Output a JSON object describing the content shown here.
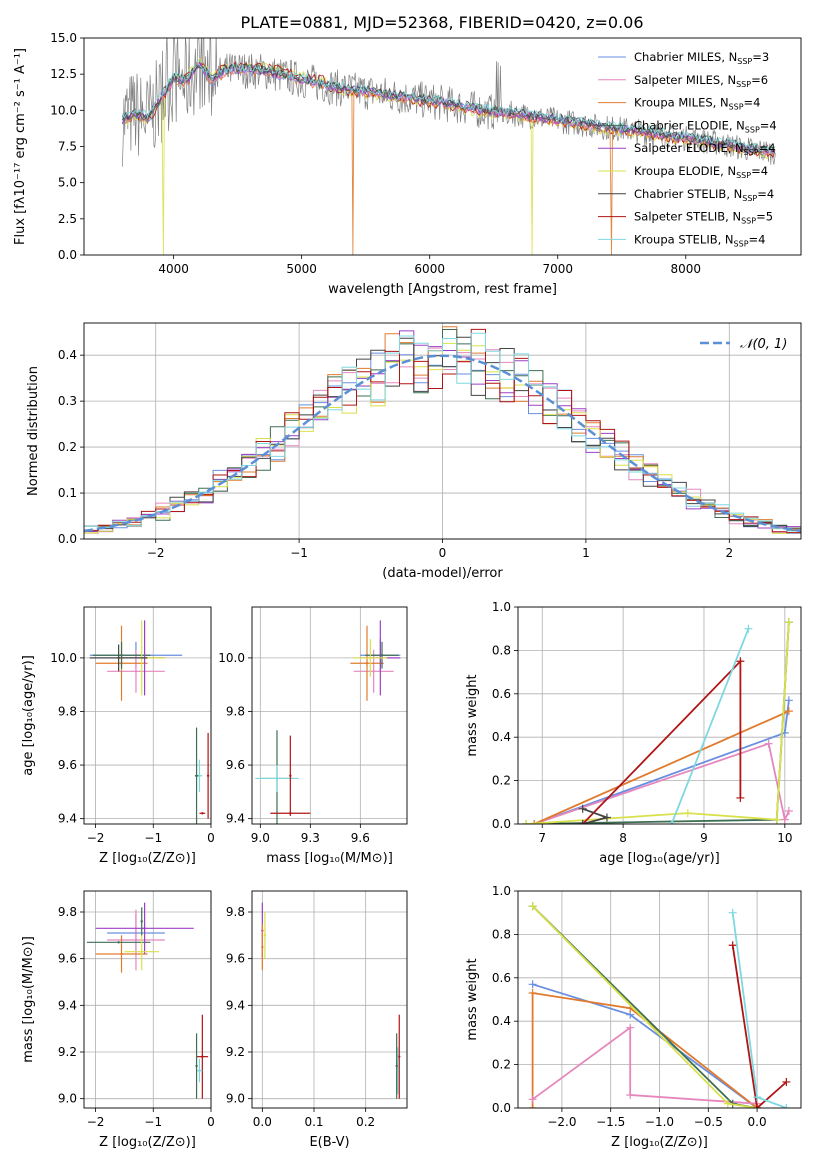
{
  "figure_title": "PLATE=0881, MJD=52368, FIBERID=0420, z=0.06",
  "colors": {
    "chabrier_miles": "#6a8fe0",
    "salpeter_miles": "#e587bd",
    "kroupa_miles": "#e07b2e",
    "chabrier_elodie": "#3f6f52",
    "salpeter_elodie": "#9b40c4",
    "kroupa_elodie": "#d8e04a",
    "chabrier_stelib": "#444444",
    "salpeter_stelib": "#b01414",
    "kroupa_stelib": "#7fd8e0",
    "data": "#808080",
    "gaussian": "#5b8fd6",
    "grid": "#b0b0b0"
  },
  "chart_data": [
    {
      "id": "spectrum",
      "type": "line",
      "title": "PLATE=0881, MJD=52368, FIBERID=0420, z=0.06",
      "xlabel": "wavelength [Angstrom, rest frame]",
      "ylabel": "Flux [fλ10⁻¹⁷ erg cm⁻² s⁻¹ A⁻¹]",
      "xlim": [
        3300,
        8900
      ],
      "ylim": [
        0,
        15
      ],
      "xticks": [
        4000,
        5000,
        6000,
        7000,
        8000
      ],
      "yticks": [
        0.0,
        2.5,
        5.0,
        7.5,
        10.0,
        12.5,
        15.0
      ],
      "xtick_labels": [
        "4000",
        "5000",
        "6000",
        "7000",
        "8000"
      ],
      "ytick_labels": [
        "0.0",
        "2.5",
        "5.0",
        "7.5",
        "10.0",
        "12.5",
        "15.0"
      ],
      "grid": false,
      "legend_position": "upper-right",
      "legend": [
        {
          "label": "Chabrier MILES, N",
          "sub": "SSP",
          "value": "=3",
          "color": "chabrier_miles"
        },
        {
          "label": "Salpeter MILES, N",
          "sub": "SSP",
          "value": "=6",
          "color": "salpeter_miles"
        },
        {
          "label": "Kroupa MILES, N",
          "sub": "SSP",
          "value": "=4",
          "color": "kroupa_miles"
        },
        {
          "label": "Chabrier ELODIE, N",
          "sub": "SSP",
          "value": "=4",
          "color": "chabrier_elodie"
        },
        {
          "label": "Salpeter ELODIE, N",
          "sub": "SSP",
          "value": "=4",
          "color": "salpeter_elodie"
        },
        {
          "label": "Kroupa ELODIE, N",
          "sub": "SSP",
          "value": "=4",
          "color": "kroupa_elodie"
        },
        {
          "label": "Chabrier STELIB, N",
          "sub": "SSP",
          "value": "=4",
          "color": "chabrier_stelib"
        },
        {
          "label": "Salpeter STELIB, N",
          "sub": "SSP",
          "value": "=5",
          "color": "salpeter_stelib"
        },
        {
          "label": "Kroupa STELIB, N",
          "sub": "SSP",
          "value": "=4",
          "color": "kroupa_stelib"
        }
      ],
      "continuum": {
        "x": [
          3600,
          3700,
          3800,
          3900,
          4000,
          4100,
          4200,
          4300,
          4400,
          4500,
          4700,
          4900,
          5100,
          5300,
          5500,
          5800,
          6100,
          6400,
          6700,
          7000,
          7300,
          7600,
          7900,
          8200,
          8500,
          8800
        ],
        "y": [
          9.3,
          9.8,
          9.4,
          10.8,
          12.2,
          12.0,
          13.2,
          12.0,
          12.7,
          12.8,
          12.7,
          12.3,
          11.9,
          11.5,
          11.3,
          10.9,
          10.5,
          10.0,
          9.7,
          9.3,
          8.9,
          8.6,
          8.2,
          7.8,
          7.3,
          7.0
        ]
      },
      "absorption_dips": [
        {
          "x": 3920,
          "y": 0.0,
          "series": "kroupa_elodie"
        },
        {
          "x": 5400,
          "y": 0.0,
          "series": "kroupa_miles"
        },
        {
          "x": 6800,
          "y": 0.0,
          "series": "kroupa_elodie"
        },
        {
          "x": 7420,
          "y": 0.0,
          "series": "kroupa_miles"
        }
      ]
    },
    {
      "id": "residuals",
      "type": "line",
      "xlabel": "(data-model)/error",
      "ylabel": "Normed distribution",
      "xlim": [
        -2.5,
        2.5
      ],
      "ylim": [
        0.0,
        0.47
      ],
      "xticks": [
        -2,
        -1,
        0,
        1,
        2
      ],
      "yticks": [
        0.0,
        0.1,
        0.2,
        0.3,
        0.4
      ],
      "xtick_labels": [
        "−2",
        "−1",
        "0",
        "1",
        "2"
      ],
      "ytick_labels": [
        "0.0",
        "0.1",
        "0.2",
        "0.3",
        "0.4"
      ],
      "grid": true,
      "legend_position": "upper-right",
      "legend": [
        {
          "label": "𝒩(0, 1)",
          "color": "gaussian",
          "style": "dashed"
        }
      ],
      "gaussian": {
        "mean": 0,
        "sigma": 1
      }
    },
    {
      "id": "age-vs-Z",
      "type": "scatter",
      "xlabel": "Z [log₁₀(Z/Z⊙)]",
      "ylabel": "age  [log₁₀(age/yr)]",
      "xlim": [
        -2.2,
        0.0
      ],
      "ylim": [
        9.38,
        10.19
      ],
      "xticks": [
        -2,
        -1,
        0
      ],
      "yticks": [
        9.4,
        9.6,
        9.8,
        10.0
      ],
      "xtick_labels": [
        "−2",
        "−1",
        "0"
      ],
      "ytick_labels": [
        "9.4",
        "9.6",
        "9.8",
        "10.0"
      ],
      "grid": true,
      "points": [
        {
          "x": -1.3,
          "y": 10.01,
          "xerr": 0.8,
          "yerr": 0.05,
          "color": "chabrier_miles"
        },
        {
          "x": -1.3,
          "y": 9.95,
          "xerr": 0.5,
          "yerr": 0.08,
          "color": "salpeter_miles"
        },
        {
          "x": -1.55,
          "y": 9.98,
          "xerr": 0.45,
          "yerr": 0.14,
          "color": "kroupa_miles"
        },
        {
          "x": -1.55,
          "y": 10.01,
          "xerr": 0.5,
          "yerr": 0.05,
          "color": "chabrier_elodie"
        },
        {
          "x": -1.15,
          "y": 10.0,
          "xerr": 0.35,
          "yerr": 0.14,
          "color": "salpeter_elodie"
        },
        {
          "x": -1.2,
          "y": 10.0,
          "xerr": 0.4,
          "yerr": 0.14,
          "color": "kroupa_elodie"
        },
        {
          "x": -1.6,
          "y": 10.0,
          "xerr": 0.5,
          "yerr": 0.05,
          "color": "chabrier_stelib"
        },
        {
          "x": -0.15,
          "y": 9.42,
          "xerr": 0.05,
          "yerr": 0.0,
          "color": "salpeter_stelib"
        },
        {
          "x": -0.2,
          "y": 9.56,
          "xerr": 0.05,
          "yerr": 0.06,
          "color": "kroupa_stelib"
        },
        {
          "x": -0.25,
          "y": 9.56,
          "xerr": 0.03,
          "yerr": 0.18,
          "color": "chabrier_elodie"
        },
        {
          "x": -0.05,
          "y": 9.56,
          "xerr": 0.0,
          "yerr": 0.16,
          "color": "salpeter_stelib"
        }
      ]
    },
    {
      "id": "age-vs-mass",
      "type": "scatter",
      "xlabel": "mass [log₁₀(M/M⊙)]",
      "ylabel": "",
      "xlim": [
        8.95,
        9.88
      ],
      "ylim": [
        9.38,
        10.19
      ],
      "xticks": [
        9.0,
        9.3,
        9.6
      ],
      "yticks": [
        9.4,
        9.6,
        9.8,
        10.0
      ],
      "xtick_labels": [
        "9.0",
        "9.3",
        "9.6"
      ],
      "ytick_labels": [
        "9.4",
        "9.6",
        "9.8",
        "10.0"
      ],
      "grid": true,
      "points": [
        {
          "x": 9.72,
          "y": 10.01,
          "xerr": 0.12,
          "yerr": 0.06,
          "color": "chabrier_miles"
        },
        {
          "x": 9.68,
          "y": 9.95,
          "xerr": 0.12,
          "yerr": 0.08,
          "color": "salpeter_miles"
        },
        {
          "x": 9.64,
          "y": 9.98,
          "xerr": 0.1,
          "yerr": 0.14,
          "color": "kroupa_miles"
        },
        {
          "x": 9.73,
          "y": 10.01,
          "xerr": 0.1,
          "yerr": 0.05,
          "color": "chabrier_elodie"
        },
        {
          "x": 9.72,
          "y": 10.0,
          "xerr": 0.12,
          "yerr": 0.14,
          "color": "salpeter_elodie"
        },
        {
          "x": 9.66,
          "y": 10.0,
          "xerr": 0.1,
          "yerr": 0.07,
          "color": "kroupa_elodie"
        },
        {
          "x": 9.1,
          "y": 9.55,
          "xerr": 0.1,
          "yerr": 0.18,
          "color": "chabrier_elodie"
        },
        {
          "x": 9.18,
          "y": 9.42,
          "xerr": 0.12,
          "yerr": 0.0,
          "color": "salpeter_stelib"
        },
        {
          "x": 9.1,
          "y": 9.55,
          "xerr": 0.13,
          "yerr": 0.05,
          "color": "kroupa_stelib"
        },
        {
          "x": 9.18,
          "y": 9.56,
          "xerr": 0.0,
          "yerr": 0.15,
          "color": "salpeter_stelib"
        }
      ]
    },
    {
      "id": "mass-weight-vs-age",
      "type": "line",
      "xlabel": "age  [log₁₀(age/yr)]",
      "ylabel": "mass weight",
      "xlim": [
        6.7,
        10.2
      ],
      "ylim": [
        0.0,
        1.0
      ],
      "xticks": [
        7,
        8,
        9,
        10
      ],
      "yticks": [
        0.0,
        0.2,
        0.4,
        0.6,
        0.8,
        1.0
      ],
      "xtick_labels": [
        "7",
        "8",
        "9",
        "10"
      ],
      "ytick_labels": [
        "0.0",
        "0.2",
        "0.4",
        "0.6",
        "0.8",
        "1.0"
      ],
      "grid": true,
      "series": [
        {
          "color": "chabrier_miles",
          "x": [
            6.9,
            10.0,
            10.05
          ],
          "y": [
            0.0,
            0.42,
            0.57
          ]
        },
        {
          "color": "salpeter_miles",
          "x": [
            6.9,
            9.8,
            10.0,
            10.05
          ],
          "y": [
            0.0,
            0.37,
            0.02,
            0.06
          ]
        },
        {
          "color": "kroupa_miles",
          "x": [
            6.9,
            10.05
          ],
          "y": [
            0.0,
            0.52
          ]
        },
        {
          "color": "chabrier_elodie",
          "x": [
            6.8,
            9.9,
            10.05
          ],
          "y": [
            0.0,
            0.02,
            0.93
          ]
        },
        {
          "color": "kroupa_elodie",
          "x": [
            6.8,
            8.8,
            9.9,
            10.05
          ],
          "y": [
            0.0,
            0.05,
            0.02,
            0.93
          ]
        },
        {
          "color": "salpeter_stelib",
          "x": [
            7.5,
            9.45,
            9.45
          ],
          "y": [
            0.0,
            0.75,
            0.12
          ]
        },
        {
          "color": "kroupa_stelib",
          "x": [
            8.6,
            9.55
          ],
          "y": [
            0.0,
            0.9
          ]
        },
        {
          "color": "chabrier_stelib",
          "x": [
            7.5,
            7.8,
            7.5
          ],
          "y": [
            0.07,
            0.03,
            0.0
          ]
        }
      ]
    },
    {
      "id": "mass-vs-Z",
      "type": "scatter",
      "xlabel": "Z [log₁₀(Z/Z⊙)]",
      "ylabel": "mass [log₁₀(M/M⊙)]",
      "xlim": [
        -2.2,
        0.0
      ],
      "ylim": [
        8.96,
        9.89
      ],
      "xticks": [
        -2,
        -1,
        0
      ],
      "yticks": [
        9.0,
        9.2,
        9.4,
        9.6,
        9.8
      ],
      "xtick_labels": [
        "−2",
        "−1",
        "0"
      ],
      "ytick_labels": [
        "9.0",
        "9.2",
        "9.4",
        "9.6",
        "9.8"
      ],
      "grid": true,
      "points": [
        {
          "x": -1.3,
          "y": 9.71,
          "xerr": 0.5,
          "yerr": 0.08,
          "color": "chabrier_miles"
        },
        {
          "x": -1.3,
          "y": 9.68,
          "xerr": 0.5,
          "yerr": 0.13,
          "color": "salpeter_miles"
        },
        {
          "x": -1.55,
          "y": 9.62,
          "xerr": 0.45,
          "yerr": 0.08,
          "color": "kroupa_miles"
        },
        {
          "x": -1.6,
          "y": 9.67,
          "xerr": 0.55,
          "yerr": 0.0,
          "color": "chabrier_elodie"
        },
        {
          "x": -1.15,
          "y": 9.73,
          "xerr": 0.85,
          "yerr": 0.11,
          "color": "salpeter_elodie"
        },
        {
          "x": -1.2,
          "y": 9.63,
          "xerr": 0.3,
          "yerr": 0.08,
          "color": "kroupa_elodie"
        },
        {
          "x": -1.2,
          "y": 9.76,
          "xerr": 0.0,
          "yerr": 0.06,
          "color": "chabrier_elodie"
        },
        {
          "x": -0.15,
          "y": 9.18,
          "xerr": 0.1,
          "yerr": 0.18,
          "color": "salpeter_stelib"
        },
        {
          "x": -0.2,
          "y": 9.12,
          "xerr": 0.05,
          "yerr": 0.05,
          "color": "kroupa_stelib"
        },
        {
          "x": -0.25,
          "y": 9.14,
          "xerr": 0.0,
          "yerr": 0.14,
          "color": "chabrier_elodie"
        }
      ]
    },
    {
      "id": "mass-vs-ebv",
      "type": "scatter",
      "xlabel": "E(B-V)",
      "ylabel": "",
      "xlim": [
        -0.02,
        0.28
      ],
      "ylim": [
        8.96,
        9.89
      ],
      "xticks": [
        0.0,
        0.1,
        0.2
      ],
      "yticks": [
        9.0,
        9.2,
        9.4,
        9.6,
        9.8
      ],
      "xtick_labels": [
        "0.0",
        "0.1",
        "0.2"
      ],
      "ytick_labels": [
        "9.0",
        "9.2",
        "9.4",
        "9.6",
        "9.8"
      ],
      "grid": true,
      "points": [
        {
          "x": 0.0,
          "y": 9.72,
          "xerr": 0.0,
          "yerr": 0.12,
          "color": "salpeter_elodie"
        },
        {
          "x": 0.0,
          "y": 9.65,
          "xerr": 0.0,
          "yerr": 0.1,
          "color": "kroupa_miles"
        },
        {
          "x": 0.005,
          "y": 9.7,
          "xerr": 0.0,
          "yerr": 0.1,
          "color": "kroupa_elodie"
        },
        {
          "x": 0.265,
          "y": 9.18,
          "xerr": 0.0,
          "yerr": 0.18,
          "color": "salpeter_stelib"
        },
        {
          "x": 0.262,
          "y": 9.12,
          "xerr": 0.0,
          "yerr": 0.1,
          "color": "kroupa_stelib"
        },
        {
          "x": 0.26,
          "y": 9.14,
          "xerr": 0.0,
          "yerr": 0.14,
          "color": "chabrier_elodie"
        }
      ]
    },
    {
      "id": "mass-weight-vs-Z",
      "type": "line",
      "xlabel": "Z [log₁₀(Z/Z⊙)]",
      "ylabel": "mass weight",
      "xlim": [
        -2.45,
        0.45
      ],
      "ylim": [
        0.0,
        1.0
      ],
      "xticks": [
        -2.0,
        -1.5,
        -1.0,
        -0.5,
        0.0
      ],
      "yticks": [
        0.0,
        0.2,
        0.4,
        0.6,
        0.8,
        1.0
      ],
      "xtick_labels": [
        "−2.0",
        "−1.5",
        "−1.0",
        "−0.5",
        "0.0"
      ],
      "ytick_labels": [
        "0.0",
        "0.2",
        "0.4",
        "0.6",
        "0.8",
        "1.0"
      ],
      "grid": true,
      "series": [
        {
          "color": "chabrier_miles",
          "x": [
            -2.3,
            -1.3,
            0.0
          ],
          "y": [
            0.57,
            0.43,
            0.0
          ]
        },
        {
          "color": "kroupa_miles",
          "x": [
            -2.3,
            -2.3,
            -1.3,
            0.0
          ],
          "y": [
            0.0,
            0.53,
            0.46,
            0.0
          ]
        },
        {
          "color": "salpeter_miles",
          "x": [
            -2.3,
            -1.3,
            -1.3,
            0.0
          ],
          "y": [
            0.04,
            0.37,
            0.06,
            0.02
          ]
        },
        {
          "color": "chabrier_elodie",
          "x": [
            -2.3,
            -0.25,
            0.0
          ],
          "y": [
            0.93,
            0.02,
            0.0
          ]
        },
        {
          "color": "kroupa_elodie",
          "x": [
            -2.3,
            -0.3,
            0.0
          ],
          "y": [
            0.93,
            0.02,
            0.0
          ]
        },
        {
          "color": "salpeter_stelib",
          "x": [
            -0.25,
            0.0,
            0.3
          ],
          "y": [
            0.75,
            0.0,
            0.12
          ]
        },
        {
          "color": "kroupa_stelib",
          "x": [
            -0.25,
            0.0,
            0.3
          ],
          "y": [
            0.9,
            0.05,
            0.0
          ]
        }
      ]
    }
  ]
}
